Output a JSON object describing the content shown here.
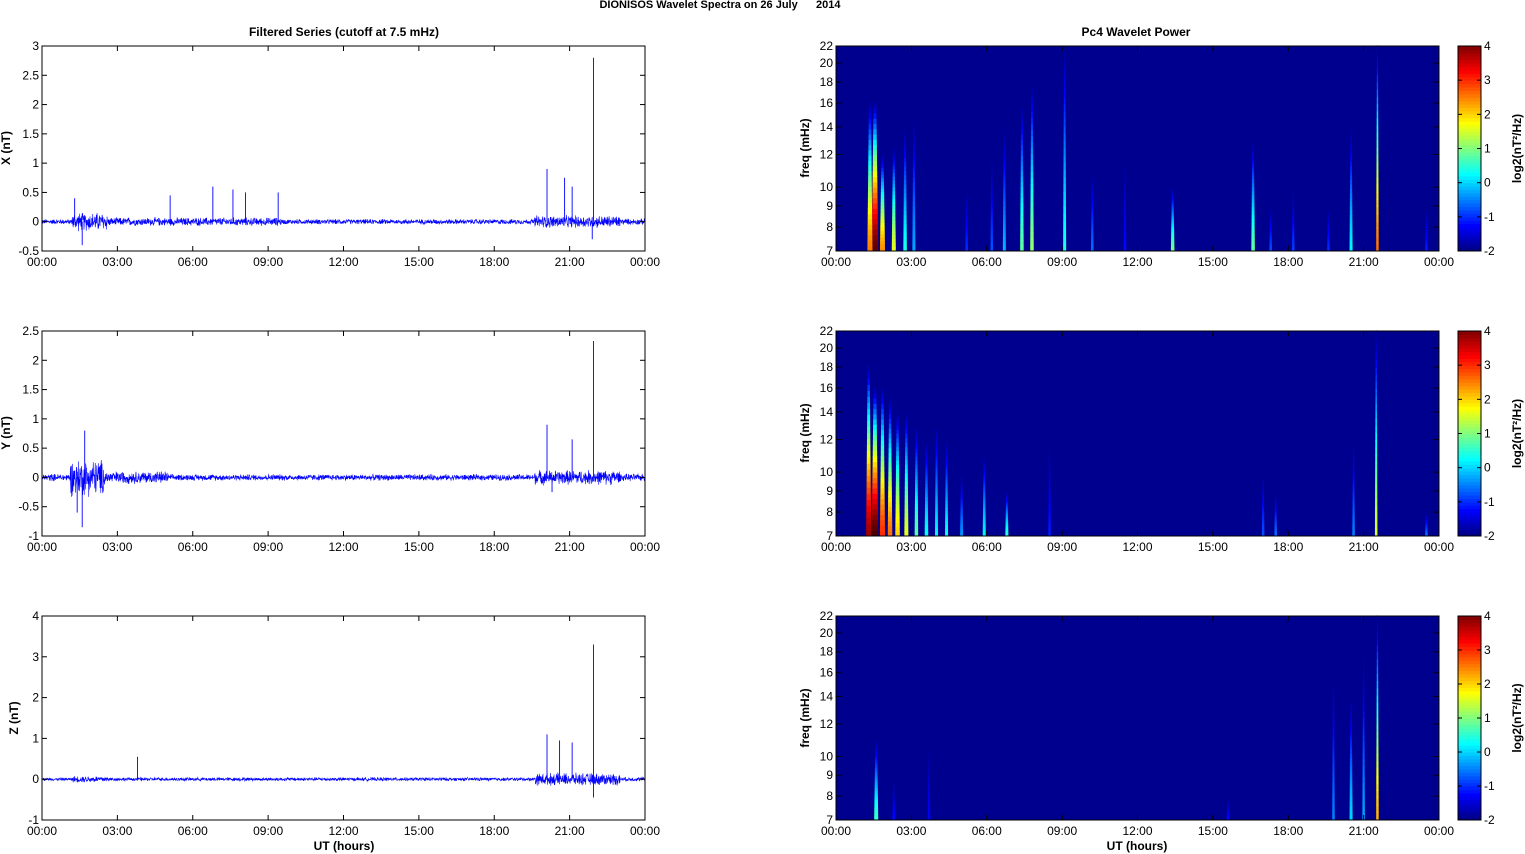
{
  "figure": {
    "suptitle": "DIONISOS Wavelet Spectra on 26 July      2014",
    "left_title": "Filtered Series (cutoff at 7.5 mHz)",
    "right_title": "Pc4 Wavelet Power",
    "xlabel": "UT (hours)",
    "spec_ylabel": "freq (mHz)"
  },
  "colors": {
    "trace": "#0000ff",
    "spectrogram_background": "#00008f",
    "colormap": "jet"
  },
  "chart_data": [
    {
      "type": "line",
      "name": "x-series",
      "title": "Filtered Series (cutoff at 7.5 mHz)",
      "xlabel": "",
      "ylabel": "X (nT)",
      "xlim": [
        0,
        24
      ],
      "ylim": [
        -0.5,
        3
      ],
      "xticks": [
        "00:00",
        "03:00",
        "06:00",
        "09:00",
        "12:00",
        "15:00",
        "18:00",
        "21:00",
        "00:00"
      ],
      "yticks": [
        "-0.5",
        "0",
        "0.5",
        "1",
        "1.5",
        "2",
        "2.5",
        "3"
      ],
      "ytick_values": [
        -0.5,
        0,
        0.5,
        1,
        1.5,
        2,
        2.5,
        3
      ],
      "noise_bands": [
        {
          "x": [
            0,
            1.2
          ],
          "amp": 0.05
        },
        {
          "x": [
            1.2,
            2.6
          ],
          "amp": 0.18
        },
        {
          "x": [
            2.6,
            9.5
          ],
          "amp": 0.08
        },
        {
          "x": [
            9.5,
            19.6
          ],
          "amp": 0.05
        },
        {
          "x": [
            19.6,
            23.0
          ],
          "amp": 0.12
        },
        {
          "x": [
            23.0,
            24
          ],
          "amp": 0.06
        }
      ],
      "spikes": [
        {
          "x": 1.3,
          "y": 0.4
        },
        {
          "x": 1.6,
          "y": -0.4
        },
        {
          "x": 5.1,
          "y": 0.45
        },
        {
          "x": 6.8,
          "y": 0.6
        },
        {
          "x": 7.6,
          "y": 0.55
        },
        {
          "x": 8.1,
          "y": 0.5
        },
        {
          "x": 9.4,
          "y": 0.5
        },
        {
          "x": 20.1,
          "y": 0.9
        },
        {
          "x": 20.8,
          "y": 0.75
        },
        {
          "x": 21.1,
          "y": 0.6
        },
        {
          "x": 21.95,
          "y": 2.8
        },
        {
          "x": 21.9,
          "y": -0.3
        }
      ]
    },
    {
      "type": "line",
      "name": "y-series",
      "title": "",
      "xlabel": "",
      "ylabel": "Y (nT)",
      "xlim": [
        0,
        24
      ],
      "ylim": [
        -1,
        2.5
      ],
      "xticks": [
        "00:00",
        "03:00",
        "06:00",
        "09:00",
        "12:00",
        "15:00",
        "18:00",
        "21:00",
        "00:00"
      ],
      "yticks": [
        "-1",
        "-0.5",
        "0",
        "0.5",
        "1",
        "1.5",
        "2",
        "2.5"
      ],
      "ytick_values": [
        -1,
        -0.5,
        0,
        0.5,
        1,
        1.5,
        2,
        2.5
      ],
      "noise_bands": [
        {
          "x": [
            0,
            1.1
          ],
          "amp": 0.07
        },
        {
          "x": [
            1.1,
            2.5
          ],
          "amp": 0.35
        },
        {
          "x": [
            2.5,
            5.0
          ],
          "amp": 0.12
        },
        {
          "x": [
            5.0,
            19.6
          ],
          "amp": 0.06
        },
        {
          "x": [
            19.6,
            23.0
          ],
          "amp": 0.14
        },
        {
          "x": [
            23.0,
            24
          ],
          "amp": 0.07
        }
      ],
      "spikes": [
        {
          "x": 1.7,
          "y": 0.8
        },
        {
          "x": 1.6,
          "y": -0.85
        },
        {
          "x": 1.4,
          "y": -0.6
        },
        {
          "x": 20.1,
          "y": 0.9
        },
        {
          "x": 21.1,
          "y": 0.65
        },
        {
          "x": 21.95,
          "y": 2.33
        },
        {
          "x": 20.3,
          "y": -0.25
        }
      ]
    },
    {
      "type": "line",
      "name": "z-series",
      "title": "",
      "xlabel": "UT (hours)",
      "ylabel": "Z (nT)",
      "xlim": [
        0,
        24
      ],
      "ylim": [
        -1,
        4
      ],
      "xticks": [
        "00:00",
        "03:00",
        "06:00",
        "09:00",
        "12:00",
        "15:00",
        "18:00",
        "21:00",
        "00:00"
      ],
      "yticks": [
        "-1",
        "0",
        "1",
        "2",
        "3",
        "4"
      ],
      "ytick_values": [
        -1,
        0,
        1,
        2,
        3,
        4
      ],
      "noise_bands": [
        {
          "x": [
            0,
            1.2
          ],
          "amp": 0.04
        },
        {
          "x": [
            1.2,
            2.6
          ],
          "amp": 0.09
        },
        {
          "x": [
            2.6,
            19.6
          ],
          "amp": 0.05
        },
        {
          "x": [
            19.6,
            23.0
          ],
          "amp": 0.17
        },
        {
          "x": [
            23.0,
            24
          ],
          "amp": 0.06
        }
      ],
      "spikes": [
        {
          "x": 3.8,
          "y": 0.55
        },
        {
          "x": 20.1,
          "y": 1.1
        },
        {
          "x": 20.6,
          "y": 0.95
        },
        {
          "x": 21.1,
          "y": 0.9
        },
        {
          "x": 21.95,
          "y": 3.3
        },
        {
          "x": 21.95,
          "y": -0.45
        }
      ]
    },
    {
      "type": "heatmap",
      "name": "x-wavelet",
      "title": "Pc4 Wavelet Power",
      "xlabel": "",
      "ylabel": "freq (mHz)",
      "xlim": [
        0,
        24
      ],
      "ylim": [
        7,
        22
      ],
      "yscale": "log",
      "zlim": [
        -2,
        4
      ],
      "colorbar_label": "log2(nT²/Hz)",
      "xticks": [
        "00:00",
        "03:00",
        "06:00",
        "09:00",
        "12:00",
        "15:00",
        "18:00",
        "21:00",
        "00:00"
      ],
      "yticks": [
        "7",
        "8",
        "9",
        "10",
        "12",
        "14",
        "16",
        "18",
        "20",
        "22"
      ],
      "ytick_values": [
        7,
        8,
        9,
        10,
        12,
        14,
        16,
        18,
        20,
        22
      ],
      "cbar_ticks": [
        "-2",
        "-1",
        "0",
        "1",
        "2",
        "3",
        "4"
      ],
      "bursts": [
        {
          "t": 1.55,
          "f": 16,
          "v": 4.2,
          "w": 0.13
        },
        {
          "t": 1.35,
          "f": 16,
          "v": 2.5,
          "w": 0.1
        },
        {
          "t": 1.85,
          "f": 12,
          "v": 2.4,
          "w": 0.1
        },
        {
          "t": 2.3,
          "f": 12.5,
          "v": 1.6,
          "w": 0.08
        },
        {
          "t": 2.75,
          "f": 14,
          "v": 0.4,
          "w": 0.07
        },
        {
          "t": 3.1,
          "f": 15,
          "v": -0.3,
          "w": 0.06
        },
        {
          "t": 5.2,
          "f": 10,
          "v": -1.0,
          "w": 0.05
        },
        {
          "t": 6.2,
          "f": 12,
          "v": -0.8,
          "w": 0.05
        },
        {
          "t": 6.7,
          "f": 14,
          "v": -0.2,
          "w": 0.06
        },
        {
          "t": 7.4,
          "f": 16,
          "v": 0.8,
          "w": 0.07
        },
        {
          "t": 7.8,
          "f": 18,
          "v": 1.1,
          "w": 0.07
        },
        {
          "t": 9.1,
          "f": 22,
          "v": 0.4,
          "w": 0.06
        },
        {
          "t": 10.2,
          "f": 11,
          "v": -0.6,
          "w": 0.05
        },
        {
          "t": 11.5,
          "f": 12,
          "v": -1.2,
          "w": 0.05
        },
        {
          "t": 13.4,
          "f": 10,
          "v": 0.9,
          "w": 0.07
        },
        {
          "t": 16.6,
          "f": 13,
          "v": 0.8,
          "w": 0.07
        },
        {
          "t": 17.3,
          "f": 9,
          "v": -0.8,
          "w": 0.05
        },
        {
          "t": 18.2,
          "f": 10,
          "v": -0.9,
          "w": 0.05
        },
        {
          "t": 19.6,
          "f": 9,
          "v": -1.0,
          "w": 0.05
        },
        {
          "t": 20.5,
          "f": 14,
          "v": 0.2,
          "w": 0.06
        },
        {
          "t": 21.55,
          "f": 22,
          "v": 2.6,
          "w": 0.05
        },
        {
          "t": 23.5,
          "f": 9,
          "v": -1.1,
          "w": 0.05
        }
      ]
    },
    {
      "type": "heatmap",
      "name": "y-wavelet",
      "title": "",
      "xlabel": "",
      "ylabel": "freq (mHz)",
      "xlim": [
        0,
        24
      ],
      "ylim": [
        7,
        22
      ],
      "yscale": "log",
      "zlim": [
        -2,
        4
      ],
      "colorbar_label": "log2(nT²/Hz)",
      "xticks": [
        "00:00",
        "03:00",
        "06:00",
        "09:00",
        "12:00",
        "15:00",
        "18:00",
        "21:00",
        "00:00"
      ],
      "yticks": [
        "7",
        "8",
        "9",
        "10",
        "12",
        "14",
        "16",
        "18",
        "20",
        "22"
      ],
      "ytick_values": [
        7,
        8,
        9,
        10,
        12,
        14,
        16,
        18,
        20,
        22
      ],
      "cbar_ticks": [
        "-2",
        "-1",
        "0",
        "1",
        "2",
        "3",
        "4"
      ],
      "bursts": [
        {
          "t": 1.3,
          "f": 18,
          "v": 3.8,
          "w": 0.1
        },
        {
          "t": 1.55,
          "f": 16,
          "v": 4.3,
          "w": 0.13
        },
        {
          "t": 1.85,
          "f": 16,
          "v": 3.0,
          "w": 0.1
        },
        {
          "t": 2.15,
          "f": 15,
          "v": 2.6,
          "w": 0.09
        },
        {
          "t": 2.45,
          "f": 14,
          "v": 2.0,
          "w": 0.09
        },
        {
          "t": 2.8,
          "f": 14,
          "v": 1.6,
          "w": 0.08
        },
        {
          "t": 3.2,
          "f": 13,
          "v": 0.8,
          "w": 0.07
        },
        {
          "t": 3.6,
          "f": 12,
          "v": 0.3,
          "w": 0.07
        },
        {
          "t": 4.0,
          "f": 13,
          "v": 0.2,
          "w": 0.06
        },
        {
          "t": 4.4,
          "f": 12,
          "v": 0.3,
          "w": 0.06
        },
        {
          "t": 5.0,
          "f": 10,
          "v": -0.4,
          "w": 0.06
        },
        {
          "t": 5.9,
          "f": 11,
          "v": 0.2,
          "w": 0.06
        },
        {
          "t": 6.8,
          "f": 9,
          "v": 0.5,
          "w": 0.06
        },
        {
          "t": 8.5,
          "f": 12,
          "v": -1.1,
          "w": 0.05
        },
        {
          "t": 17.0,
          "f": 10,
          "v": -0.8,
          "w": 0.05
        },
        {
          "t": 17.5,
          "f": 9,
          "v": -0.6,
          "w": 0.05
        },
        {
          "t": 20.6,
          "f": 12,
          "v": -0.5,
          "w": 0.05
        },
        {
          "t": 21.5,
          "f": 22,
          "v": 1.5,
          "w": 0.05
        },
        {
          "t": 23.5,
          "f": 8,
          "v": -0.6,
          "w": 0.05
        }
      ]
    },
    {
      "type": "heatmap",
      "name": "z-wavelet",
      "title": "",
      "xlabel": "UT (hours)",
      "ylabel": "freq (mHz)",
      "xlim": [
        0,
        24
      ],
      "ylim": [
        7,
        22
      ],
      "yscale": "log",
      "zlim": [
        -2,
        4
      ],
      "colorbar_label": "log2(nT²/Hz)",
      "xticks": [
        "00:00",
        "03:00",
        "06:00",
        "09:00",
        "12:00",
        "15:00",
        "18:00",
        "21:00",
        "00:00"
      ],
      "yticks": [
        "7",
        "8",
        "9",
        "10",
        "12",
        "14",
        "16",
        "18",
        "20",
        "22"
      ],
      "ytick_values": [
        7,
        8,
        9,
        10,
        12,
        14,
        16,
        18,
        20,
        22
      ],
      "cbar_ticks": [
        "-2",
        "-1",
        "0",
        "1",
        "2",
        "3",
        "4"
      ],
      "bursts": [
        {
          "t": 1.6,
          "f": 11,
          "v": 0.6,
          "w": 0.08
        },
        {
          "t": 2.3,
          "f": 9,
          "v": -1.2,
          "w": 0.05
        },
        {
          "t": 3.7,
          "f": 11,
          "v": -1.3,
          "w": 0.05
        },
        {
          "t": 15.6,
          "f": 8,
          "v": -1.2,
          "w": 0.05
        },
        {
          "t": 19.8,
          "f": 16,
          "v": -0.5,
          "w": 0.05
        },
        {
          "t": 20.5,
          "f": 14,
          "v": 0.0,
          "w": 0.06
        },
        {
          "t": 21.0,
          "f": 18,
          "v": -0.3,
          "w": 0.05
        },
        {
          "t": 21.55,
          "f": 22,
          "v": 2.2,
          "w": 0.05
        }
      ]
    }
  ]
}
